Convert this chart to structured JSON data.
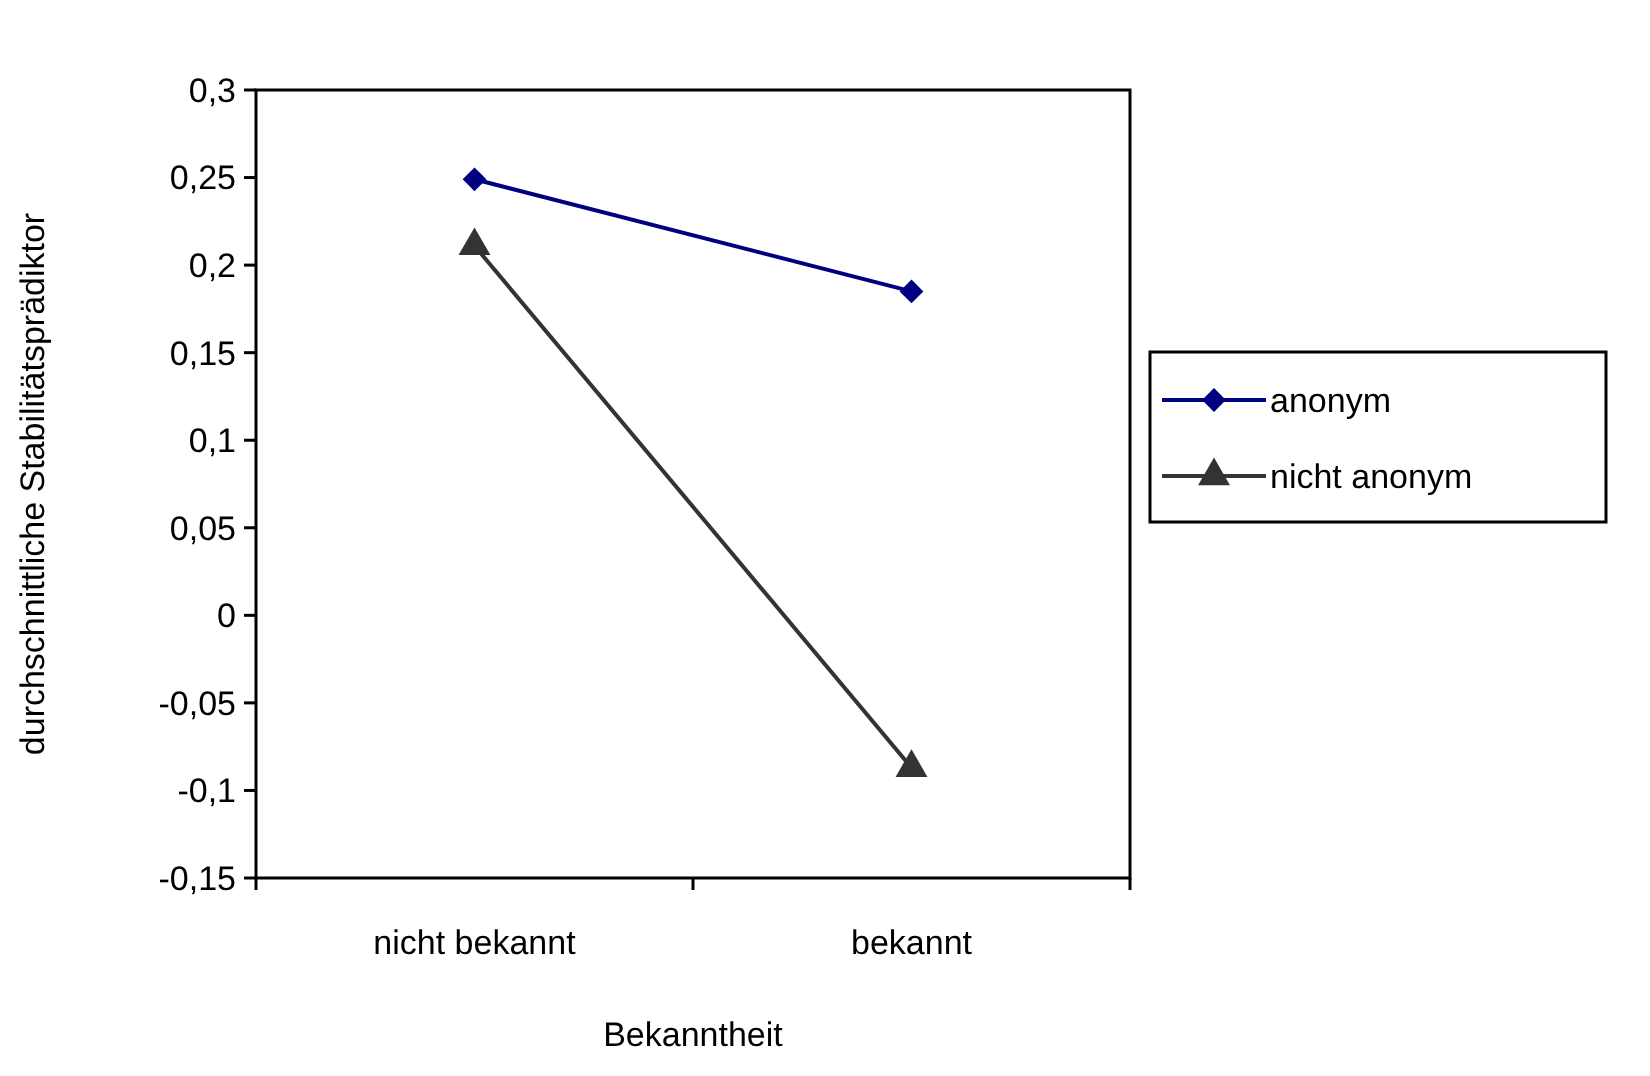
{
  "chart_data": {
    "type": "line",
    "xlabel": "Bekanntheit",
    "ylabel": "durchschnittliche Stabilitätsprädiktor",
    "categories": [
      "nicht bekannt",
      "bekannt"
    ],
    "series": [
      {
        "name": "anonym",
        "color": "#000080",
        "values": [
          0.249,
          0.185
        ],
        "marker": "diamond"
      },
      {
        "name": "nicht anonym",
        "color": "#333333",
        "values": [
          0.211,
          -0.087
        ],
        "marker": "triangle"
      }
    ],
    "ylim": [
      -0.15,
      0.3
    ],
    "yticks": [
      {
        "value": -0.15,
        "label": "-0,15"
      },
      {
        "value": -0.1,
        "label": "-0,1"
      },
      {
        "value": -0.05,
        "label": "-0,05"
      },
      {
        "value": 0,
        "label": "0"
      },
      {
        "value": 0.05,
        "label": "0,05"
      },
      {
        "value": 0.1,
        "label": "0,1"
      },
      {
        "value": 0.15,
        "label": "0,15"
      },
      {
        "value": 0.2,
        "label": "0,2"
      },
      {
        "value": 0.25,
        "label": "0,25"
      },
      {
        "value": 0.3,
        "label": "0,3"
      }
    ],
    "grid": false,
    "legend": "right",
    "line_style": "solid"
  }
}
